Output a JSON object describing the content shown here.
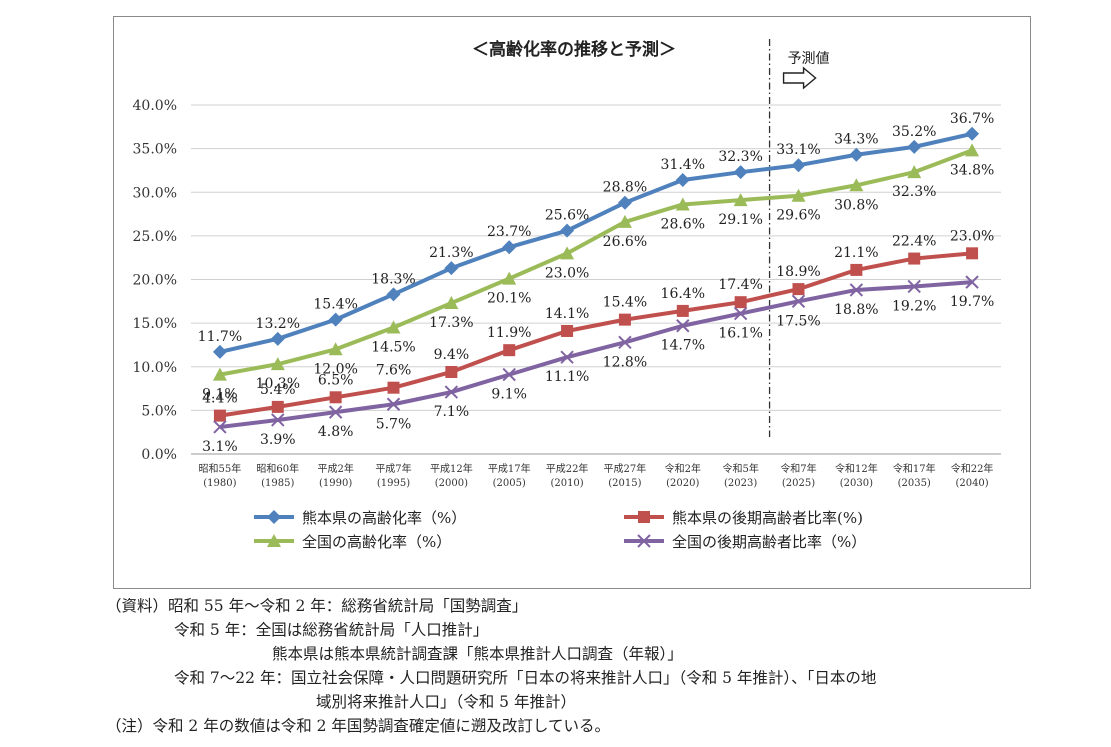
{
  "chart_data": {
    "type": "line",
    "title": "＜高齢化率の推移と予測＞",
    "projection_label": "予測値",
    "categories": [
      {
        "era": "昭和55年",
        "year": "(1980)"
      },
      {
        "era": "昭和60年",
        "year": "(1985)"
      },
      {
        "era": "平成2年",
        "year": "(1990)"
      },
      {
        "era": "平成7年",
        "year": "(1995)"
      },
      {
        "era": "平成12年",
        "year": "(2000)"
      },
      {
        "era": "平成17年",
        "year": "(2005)"
      },
      {
        "era": "平成22年",
        "year": "(2010)"
      },
      {
        "era": "平成27年",
        "year": "(2015)"
      },
      {
        "era": "令和2年",
        "year": "(2020)"
      },
      {
        "era": "令和5年",
        "year": "(2023)"
      },
      {
        "era": "令和7年",
        "year": "(2025)"
      },
      {
        "era": "令和12年",
        "year": "(2030)"
      },
      {
        "era": "令和17年",
        "year": "(2035)"
      },
      {
        "era": "令和22年",
        "year": "(2040)"
      }
    ],
    "y_ticks": [
      "0.0%",
      "5.0%",
      "10.0%",
      "15.0%",
      "20.0%",
      "25.0%",
      "30.0%",
      "35.0%",
      "40.0%"
    ],
    "ylim": [
      0,
      40
    ],
    "projection_start_after_index": 9,
    "grid": true,
    "legend_position": "bottom",
    "series": [
      {
        "name": "熊本県の高齢化率（%）",
        "color": "#4f81bd",
        "marker": "diamond",
        "values": [
          11.7,
          13.2,
          15.4,
          18.3,
          21.3,
          23.7,
          25.6,
          28.8,
          31.4,
          32.3,
          33.1,
          34.3,
          35.2,
          36.7
        ]
      },
      {
        "name": "熊本県の後期高齢者比率(%)",
        "color": "#c0504d",
        "marker": "square",
        "values": [
          4.4,
          5.4,
          6.5,
          7.6,
          9.4,
          11.9,
          14.1,
          15.4,
          16.4,
          17.4,
          18.9,
          21.1,
          22.4,
          23.0
        ]
      },
      {
        "name": "全国の高齢化率（%）",
        "color": "#9bbb59",
        "marker": "triangle",
        "values": [
          9.1,
          10.3,
          12.0,
          14.5,
          17.3,
          20.1,
          23.0,
          26.6,
          28.6,
          29.1,
          29.6,
          30.8,
          32.3,
          34.8
        ]
      },
      {
        "name": "全国の後期高齢者比率（%）",
        "color": "#8064a2",
        "marker": "x",
        "values": [
          3.1,
          3.9,
          4.8,
          5.7,
          7.1,
          9.1,
          11.1,
          12.8,
          14.7,
          16.1,
          17.5,
          18.8,
          19.2,
          19.7
        ]
      }
    ]
  },
  "notes": {
    "source_line1": "（資料）昭和 55 年～令和 2 年：総務省統計局「国勢調査」",
    "source_line2": "令和 5 年：全国は総務省統計局「人口推計」",
    "source_line3": "熊本県は熊本県統計調査課「熊本県推計人口調査（年報）」",
    "source_line4": "令和 7～22 年：国立社会保障・人口問題研究所「日本の将来推計人口」（令和 5 年推計）、「日本の地",
    "source_line5": "域別将来推計人口」（令和 5 年推計）",
    "note_line": "（注）令和 2 年の数値は令和 2 年国勢調査確定値に遡及改訂している。"
  }
}
